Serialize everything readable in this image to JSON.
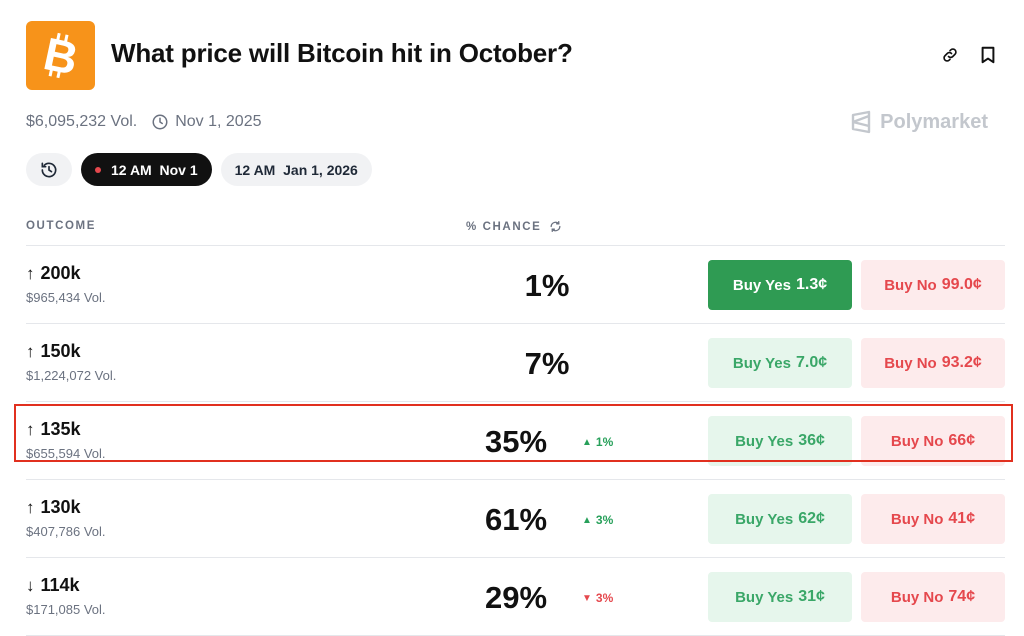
{
  "header": {
    "title": "What price will Bitcoin hit in October?",
    "logo_icon": "bitcoin-icon",
    "logo_color": "#f7931a",
    "actions": [
      {
        "name": "link-icon"
      },
      {
        "name": "bookmark-icon"
      }
    ]
  },
  "meta": {
    "volume": "$6,095,232 Vol.",
    "end_date": "Nov 1, 2025",
    "brand": "Polymarket"
  },
  "date_pills": [
    {
      "label": "12 AM  Nov 1",
      "active": true
    },
    {
      "label": "12 AM  Jan 1, 2026",
      "active": false
    }
  ],
  "table": {
    "col_outcome": "OUTCOME",
    "col_chance": "% CHANCE",
    "rows": [
      {
        "arrow": "↑",
        "name": "200k",
        "vol": "$965,434 Vol.",
        "chance": "1%",
        "change": "",
        "direction": "",
        "yes_label": "Buy Yes",
        "yes_price": "1.3¢",
        "no_label": "Buy No",
        "no_price": "99.0¢",
        "yes_solid": true
      },
      {
        "arrow": "↑",
        "name": "150k",
        "vol": "$1,224,072 Vol.",
        "chance": "7%",
        "change": "",
        "direction": "",
        "yes_label": "Buy Yes",
        "yes_price": "7.0¢",
        "no_label": "Buy No",
        "no_price": "93.2¢",
        "yes_solid": false
      },
      {
        "arrow": "↑",
        "name": "135k",
        "vol": "$655,594 Vol.",
        "chance": "35%",
        "change": "1%",
        "direction": "up",
        "yes_label": "Buy Yes",
        "yes_price": "36¢",
        "no_label": "Buy No",
        "no_price": "66¢",
        "yes_solid": false
      },
      {
        "arrow": "↑",
        "name": "130k",
        "vol": "$407,786 Vol.",
        "chance": "61%",
        "change": "3%",
        "direction": "up",
        "yes_label": "Buy Yes",
        "yes_price": "62¢",
        "no_label": "Buy No",
        "no_price": "41¢",
        "yes_solid": false
      },
      {
        "arrow": "↓",
        "name": "114k",
        "vol": "$171,085 Vol.",
        "chance": "29%",
        "change": "3%",
        "direction": "down",
        "yes_label": "Buy Yes",
        "yes_price": "31¢",
        "no_label": "Buy No",
        "no_price": "74¢",
        "yes_solid": false
      }
    ]
  },
  "colors": {
    "yes": "#3aa768",
    "yes_solid": "#2f9b53",
    "no": "#e5484d",
    "highlight": "#e1301f"
  }
}
